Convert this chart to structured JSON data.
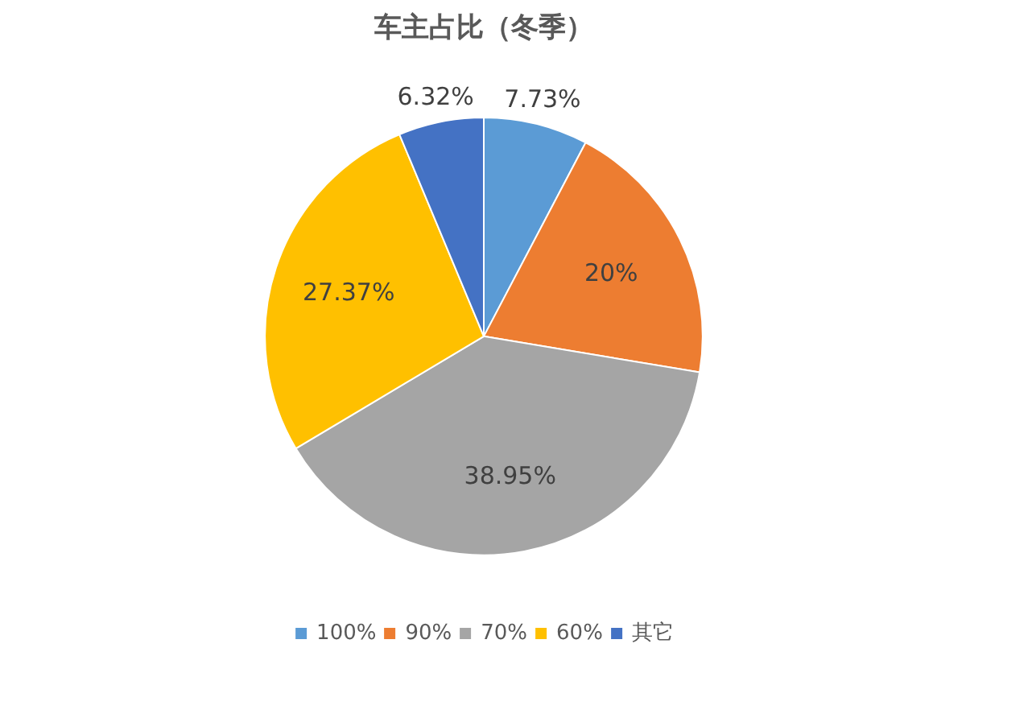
{
  "chart_data": {
    "type": "pie",
    "title": "车主占比（冬季）",
    "categories": [
      "100%",
      "90%",
      "70%",
      "60%",
      "其它"
    ],
    "values": [
      7.73,
      20,
      38.95,
      27.37,
      6.32
    ],
    "colors": [
      "#5b9bd5",
      "#ed7d31",
      "#a5a5a5",
      "#ffc000",
      "#4472c4"
    ],
    "value_labels": [
      "7.73%",
      "20%",
      "38.95%",
      "27.37%",
      "6.32%"
    ],
    "legend": "bottom"
  }
}
